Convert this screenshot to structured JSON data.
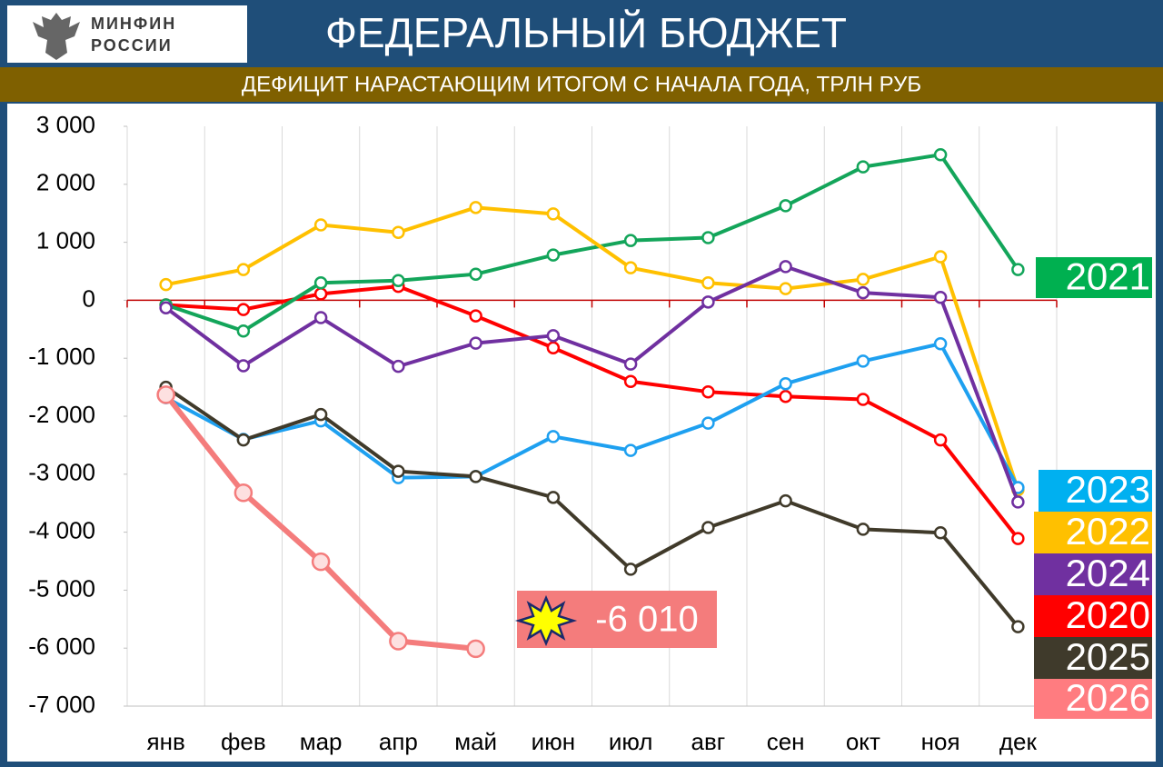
{
  "header": {
    "logo_lines": [
      "МИНФИН",
      "РОССИИ"
    ]
  },
  "chart_data": {
    "type": "line",
    "title": "ФЕДЕРАЛЬНЫЙ БЮДЖЕТ",
    "subtitle": "ДЕФИЦИТ НАРАСТАЮЩИМ ИТОГОМ С НАЧАЛА ГОДА, ТРЛН РУБ",
    "categories": [
      "янв",
      "фев",
      "мар",
      "апр",
      "май",
      "июн",
      "июл",
      "авг",
      "сен",
      "окт",
      "ноя",
      "дек"
    ],
    "ylim": [
      -7000,
      3000
    ],
    "yticks": [
      {
        "value": -7000,
        "label": "-7 000"
      },
      {
        "value": -6000,
        "label": "-6 000"
      },
      {
        "value": -5000,
        "label": "-5 000"
      },
      {
        "value": -4000,
        "label": "-4 000"
      },
      {
        "value": -3000,
        "label": "-3 000"
      },
      {
        "value": -2000,
        "label": "-2 000"
      },
      {
        "value": -1000,
        "label": "-1 000"
      },
      0,
      {
        "value": 1000,
        "label": "1 000"
      },
      {
        "value": 2000,
        "label": "2 000"
      },
      {
        "value": 3000,
        "label": "3 000"
      }
    ],
    "xgrid": true,
    "ygrid": false,
    "series": [
      {
        "name": "2020",
        "color": "#ff0000",
        "values": [
          -80,
          -160,
          110,
          240,
          -270,
          -820,
          -1400,
          -1580,
          -1660,
          -1710,
          -2410,
          -4110
        ]
      },
      {
        "name": "2021",
        "color": "#13a55a",
        "values": [
          -80,
          -530,
          300,
          340,
          450,
          780,
          1030,
          1080,
          1630,
          2300,
          2510,
          530
        ]
      },
      {
        "name": "2022",
        "color": "#ffc000",
        "values": [
          270,
          530,
          1300,
          1170,
          1600,
          1490,
          560,
          300,
          200,
          360,
          750,
          -3270
        ]
      },
      {
        "name": "2023",
        "color": "#1ea0f0",
        "values": [
          -1680,
          -2400,
          -2080,
          -3060,
          -3040,
          -2350,
          -2590,
          -2120,
          -1440,
          -1050,
          -750,
          -3230
        ]
      },
      {
        "name": "2024",
        "color": "#7030a0",
        "values": [
          -130,
          -1130,
          -300,
          -1140,
          -740,
          -610,
          -1100,
          -30,
          580,
          130,
          50,
          -3480
        ]
      },
      {
        "name": "2025",
        "color": "#403a2a",
        "values": [
          -1500,
          -2410,
          -1970,
          -2950,
          -3040,
          -3400,
          -4640,
          -3920,
          -3460,
          -3950,
          -4010,
          -5630
        ]
      },
      {
        "name": "2026",
        "color": "#f47c7c",
        "values": [
          -1630,
          -3320,
          -4510,
          -5880,
          -6010,
          null,
          null,
          null,
          null,
          null,
          null,
          null
        ],
        "value_labels": [
          null,
          null,
          null,
          null,
          "-6 010",
          null,
          null,
          null,
          null,
          null,
          null,
          null
        ]
      }
    ]
  }
}
